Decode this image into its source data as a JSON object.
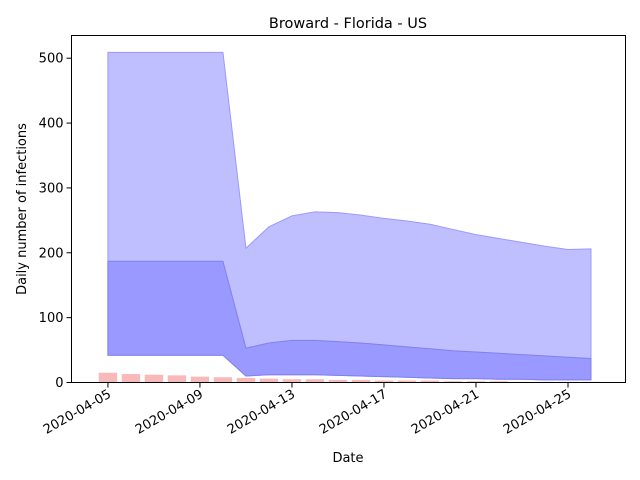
{
  "chart_data": {
    "type": "area",
    "title": "Broward - Florida - US",
    "xlabel": "Date",
    "ylabel": "Daily number of infections",
    "x_tick_labels": [
      "2020-04-05",
      "2020-04-09",
      "2020-04-13",
      "2020-04-17",
      "2020-04-21",
      "2020-04-25"
    ],
    "y_tick_labels": [
      "0",
      "100",
      "200",
      "300",
      "400",
      "500"
    ],
    "ylim": [
      0,
      535
    ],
    "xlim": [
      "2020-04-03T10:00",
      "2020-04-27T12:00"
    ],
    "grid": false,
    "dates": [
      "2020-04-05",
      "2020-04-06",
      "2020-04-07",
      "2020-04-08",
      "2020-04-09",
      "2020-04-10",
      "2020-04-11",
      "2020-04-12",
      "2020-04-13",
      "2020-04-14",
      "2020-04-15",
      "2020-04-16",
      "2020-04-17",
      "2020-04-18",
      "2020-04-19",
      "2020-04-20",
      "2020-04-21",
      "2020-04-22",
      "2020-04-23",
      "2020-04-24",
      "2020-04-25",
      "2020-04-26"
    ],
    "bands": [
      {
        "color": "#bfbfff",
        "edge_color": "#9999ff",
        "lower": [
          42,
          42,
          42,
          42,
          42,
          42,
          10,
          12,
          12,
          12,
          11,
          10,
          9,
          8,
          7,
          6,
          6,
          5,
          5,
          4,
          4,
          4
        ],
        "upper": [
          509,
          509,
          509,
          509,
          509,
          509,
          207,
          240,
          257,
          263,
          262,
          258,
          253,
          249,
          244,
          236,
          228,
          222,
          216,
          210,
          205,
          206
        ]
      },
      {
        "color": "#9999ff",
        "edge_color": "#8080ee",
        "lower": [
          42,
          42,
          42,
          42,
          42,
          42,
          10,
          12,
          12,
          12,
          11,
          10,
          9,
          8,
          7,
          6,
          6,
          5,
          5,
          4,
          4,
          4
        ],
        "upper": [
          187,
          187,
          187,
          187,
          187,
          187,
          53,
          61,
          65,
          65,
          63,
          61,
          58,
          55,
          52,
          49,
          47,
          45,
          43,
          41,
          39,
          37
        ]
      }
    ],
    "bars": {
      "color": "#f08080",
      "opacity": 0.55,
      "values": [
        15,
        13,
        12,
        11,
        9,
        8,
        7,
        6,
        5,
        5,
        4,
        4,
        3,
        3,
        3,
        2,
        2,
        2,
        1,
        1,
        1,
        1
      ]
    }
  }
}
